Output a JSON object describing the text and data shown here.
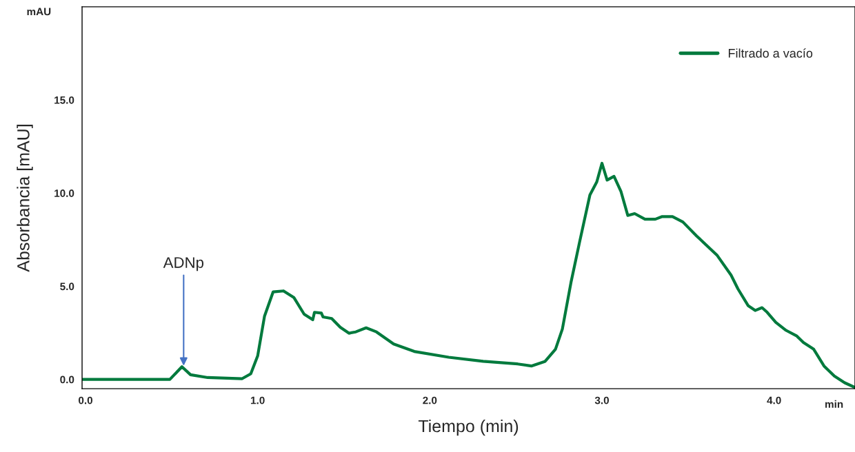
{
  "chart_data": {
    "type": "line",
    "xlabel": "Tiempo (min)",
    "ylabel": "Absorbancia [mAU]",
    "xlim": [
      -0.02,
      4.47
    ],
    "ylim": [
      -0.5,
      20
    ],
    "xticks": [
      {
        "value": 0,
        "label": "0.0"
      },
      {
        "value": 1,
        "label": "1.0"
      },
      {
        "value": 2,
        "label": "2.0"
      },
      {
        "value": 3,
        "label": "3.0"
      },
      {
        "value": 4,
        "label": "4.0"
      }
    ],
    "yticks": [
      {
        "value": 0,
        "label": "0.0"
      },
      {
        "value": 5,
        "label": "5.0"
      },
      {
        "value": 10,
        "label": "10.0"
      },
      {
        "value": 15,
        "label": "15.0"
      }
    ],
    "grid": false,
    "legend": "top right",
    "marker": "none",
    "line_style": "solid",
    "annotations": [
      "mAU",
      "min",
      {
        "text": "ADNp",
        "x": 0.57,
        "y": 0.68
      }
    ],
    "series": [
      {
        "name": "Filtrado a vacío",
        "color": "#007a3d",
        "x": [
          -0.02,
          0.49,
          0.56,
          0.61,
          0.71,
          0.91,
          0.96,
          1.0,
          1.04,
          1.09,
          1.15,
          1.21,
          1.27,
          1.32,
          1.33,
          1.37,
          1.38,
          1.43,
          1.48,
          1.53,
          1.57,
          1.63,
          1.69,
          1.79,
          1.91,
          2.11,
          2.31,
          2.51,
          2.59,
          2.67,
          2.73,
          2.77,
          2.82,
          2.87,
          2.93,
          2.97,
          3.0,
          3.03,
          3.07,
          3.11,
          3.15,
          3.19,
          3.25,
          3.31,
          3.35,
          3.41,
          3.47,
          3.55,
          3.67,
          3.75,
          3.79,
          3.85,
          3.89,
          3.93,
          3.96,
          4.01,
          4.07,
          4.13,
          4.17,
          4.23,
          4.29,
          4.35,
          4.41,
          4.47
        ],
        "values": [
          0.0,
          0.0,
          0.68,
          0.25,
          0.1,
          0.04,
          0.3,
          1.26,
          3.4,
          4.7,
          4.75,
          4.4,
          3.5,
          3.2,
          3.6,
          3.56,
          3.35,
          3.27,
          2.8,
          2.48,
          2.55,
          2.77,
          2.55,
          1.9,
          1.5,
          1.19,
          0.97,
          0.83,
          0.72,
          0.97,
          1.62,
          2.7,
          5.2,
          7.37,
          9.9,
          10.6,
          11.6,
          10.7,
          10.9,
          10.1,
          8.8,
          8.9,
          8.6,
          8.6,
          8.74,
          8.74,
          8.45,
          7.7,
          6.65,
          5.6,
          4.86,
          3.95,
          3.7,
          3.85,
          3.6,
          3.06,
          2.63,
          2.34,
          1.98,
          1.62,
          0.72,
          0.18,
          -0.18,
          -0.43
        ]
      }
    ]
  }
}
